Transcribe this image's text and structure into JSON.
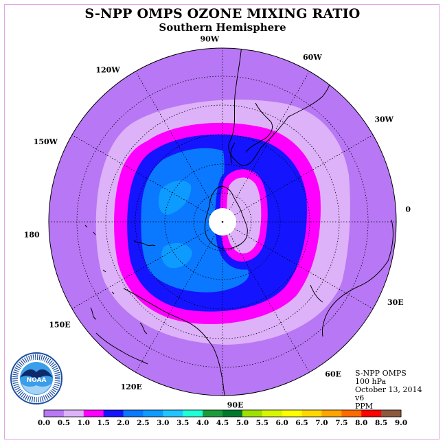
{
  "title": "S-NPP OMPS OZONE MIXING RATIO",
  "subtitle": "Southern Hemisphere",
  "longitude_labels": [
    "90W",
    "60W",
    "30W",
    "0",
    "30E",
    "60E",
    "90E",
    "120E",
    "150E",
    "180",
    "150W",
    "120W"
  ],
  "info": {
    "instrument": "S-NPP OMPS",
    "level": "100 hPa",
    "date": "October 13, 2014",
    "version": "v6",
    "units": "PPM"
  },
  "logo": {
    "text": "NOAA",
    "icon": "noaa-logo"
  },
  "colorbar": {
    "ticks": [
      "0.0",
      "0.5",
      "1.0",
      "1.5",
      "2.0",
      "2.5",
      "3.0",
      "3.5",
      "4.0",
      "4.5",
      "5.0",
      "5.5",
      "6.0",
      "6.5",
      "7.0",
      "7.5",
      "8.0",
      "8.5",
      "9.0"
    ],
    "colors": [
      "#b877f4",
      "#ddb2f8",
      "#ff00ff",
      "#1414ff",
      "#0a78ff",
      "#0d9bff",
      "#21c4ff",
      "#1fffd6",
      "#1d9b3c",
      "#007a2c",
      "#9fe000",
      "#d8f500",
      "#ffff00",
      "#ffd700",
      "#ffa500",
      "#ff6a00",
      "#ff0000",
      "#8b5a3c"
    ]
  },
  "colors": {
    "background_field": "#b877f4",
    "frame": "#e2a6e2"
  }
}
